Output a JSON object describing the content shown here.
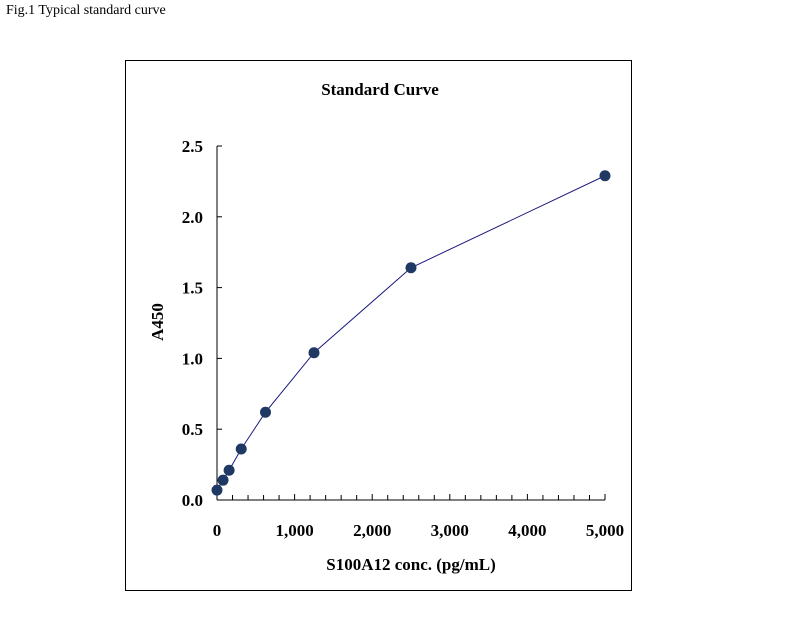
{
  "caption": "Fig.1 Typical standard curve",
  "chart_data": {
    "type": "line",
    "title": "Standard Curve",
    "xlabel": "S100A12 conc. (pg/mL)",
    "ylabel": "A450",
    "xlim": [
      0,
      5000
    ],
    "ylim": [
      0,
      2.5
    ],
    "x_ticks": [
      0,
      1000,
      2000,
      3000,
      4000,
      5000
    ],
    "x_tick_labels": [
      "0",
      "1,000",
      "2,000",
      "3,000",
      "4,000",
      "5,000"
    ],
    "y_ticks": [
      0,
      0.5,
      1.0,
      1.5,
      2.0,
      2.5
    ],
    "y_tick_labels": [
      "0.0",
      "0.5",
      "1.0",
      "1.5",
      "2.0",
      "2.5"
    ],
    "series": [
      {
        "name": "Standard",
        "x": [
          0,
          78,
          156,
          312,
          625,
          1250,
          2500,
          5000
        ],
        "y": [
          0.07,
          0.14,
          0.21,
          0.36,
          0.62,
          1.04,
          1.64,
          2.29
        ]
      }
    ],
    "colors": {
      "line": "#1a1a80",
      "marker": "#1f3864"
    },
    "grid": false,
    "legend": "none"
  }
}
